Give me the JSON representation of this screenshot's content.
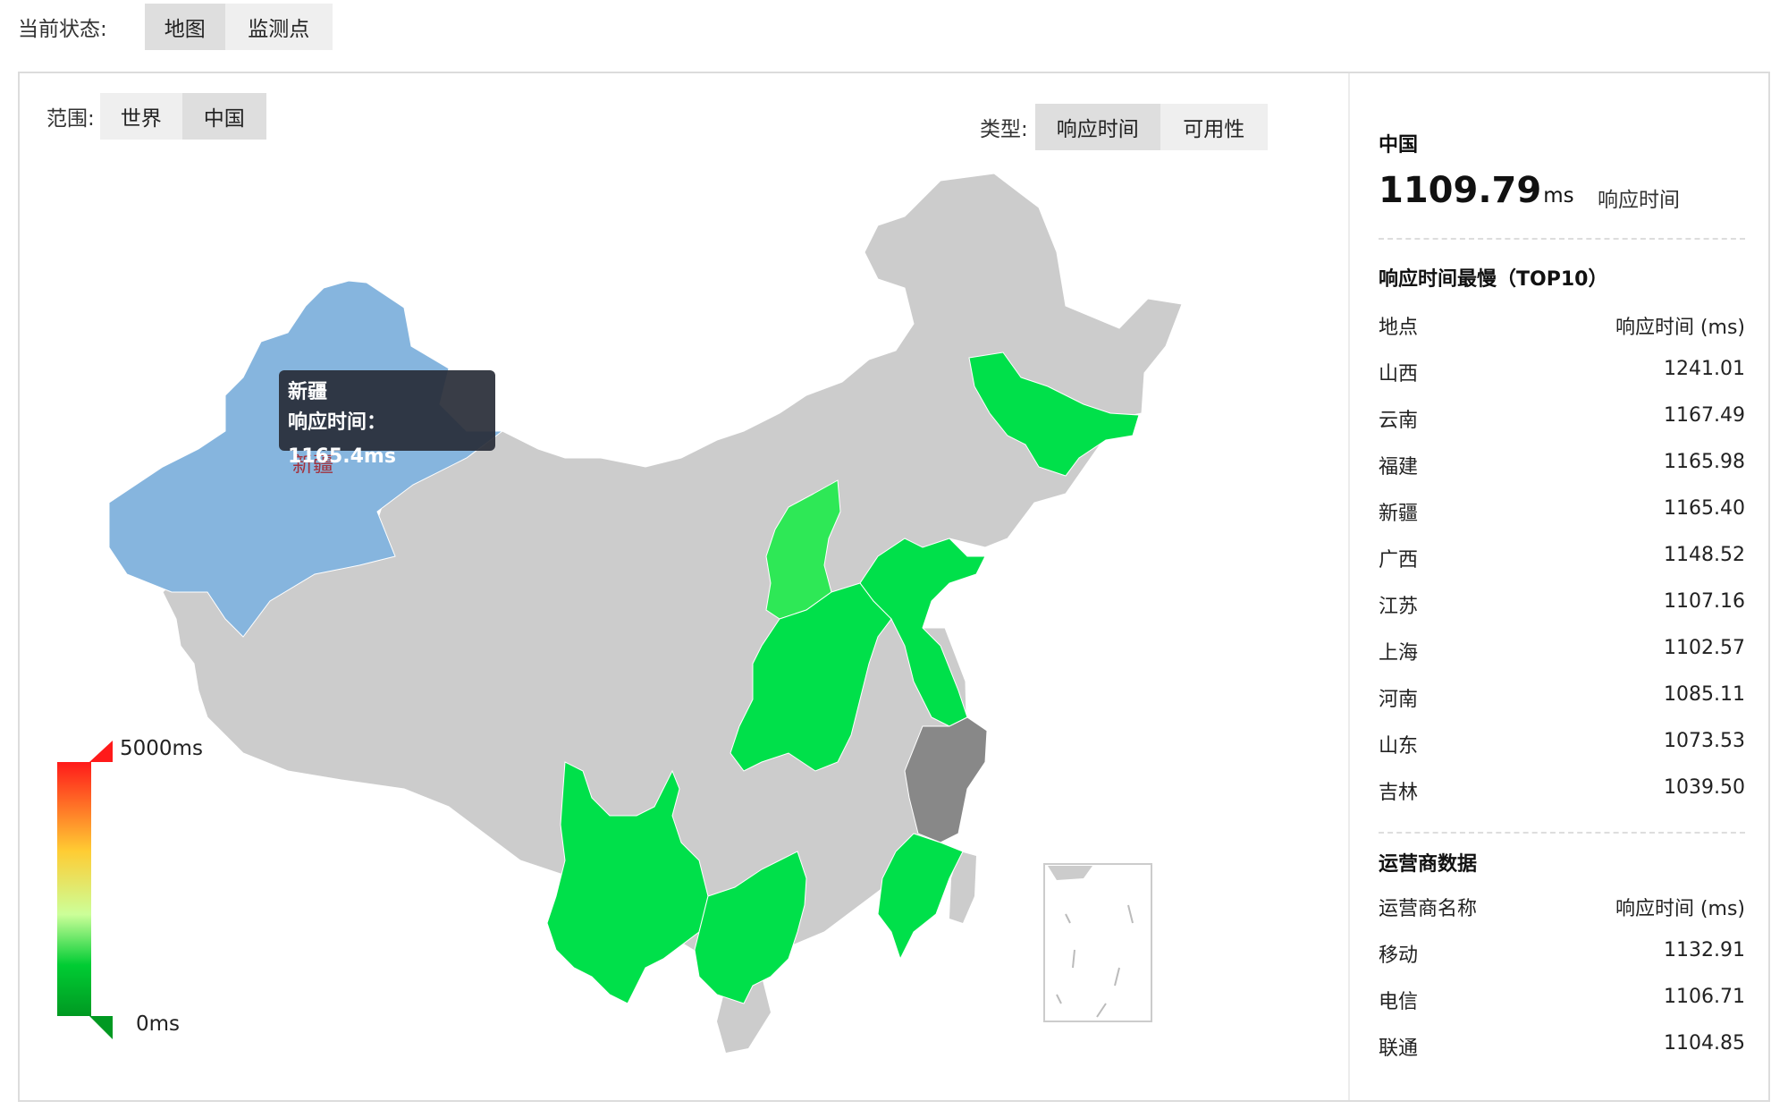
{
  "status": {
    "label": "当前状态:",
    "tabs": [
      {
        "label": "地图",
        "active": true
      },
      {
        "label": "监测点",
        "active": false
      }
    ]
  },
  "scope": {
    "label": "范围:",
    "options": [
      {
        "label": "世界",
        "active": false
      },
      {
        "label": "中国",
        "active": true
      }
    ]
  },
  "type": {
    "label": "类型:",
    "options": [
      {
        "label": "响应时间",
        "active": true
      },
      {
        "label": "可用性",
        "active": false
      }
    ]
  },
  "legend": {
    "max": "5000ms",
    "min": "0ms",
    "colors": [
      "#ff1a1a",
      "#ffcc33",
      "#ccff99",
      "#00cc33",
      "#009922"
    ]
  },
  "tooltip": {
    "title": "新疆",
    "line": "响应时间：1165.4ms"
  },
  "map_label": "新疆",
  "colors": {
    "default": "#cccccc",
    "hover": "#86b5de",
    "green": "#00e04a",
    "light_green": "#2ee856",
    "gray_dark": "#888888"
  },
  "summary": {
    "region": "中国",
    "value": "1109.79",
    "unit": "ms",
    "metric": "响应时间"
  },
  "top10": {
    "title": "响应时间最慢（TOP10）",
    "header": [
      "地点",
      "响应时间 (ms)"
    ],
    "rows": [
      [
        "山西",
        "1241.01"
      ],
      [
        "云南",
        "1167.49"
      ],
      [
        "福建",
        "1165.98"
      ],
      [
        "新疆",
        "1165.40"
      ],
      [
        "广西",
        "1148.52"
      ],
      [
        "江苏",
        "1107.16"
      ],
      [
        "上海",
        "1102.57"
      ],
      [
        "河南",
        "1085.11"
      ],
      [
        "山东",
        "1073.53"
      ],
      [
        "吉林",
        "1039.50"
      ]
    ]
  },
  "carriers": {
    "title": "运营商数据",
    "header": [
      "运营商名称",
      "响应时间 (ms)"
    ],
    "rows": [
      [
        "移动",
        "1132.91"
      ],
      [
        "电信",
        "1106.71"
      ],
      [
        "联通",
        "1104.85"
      ]
    ]
  }
}
